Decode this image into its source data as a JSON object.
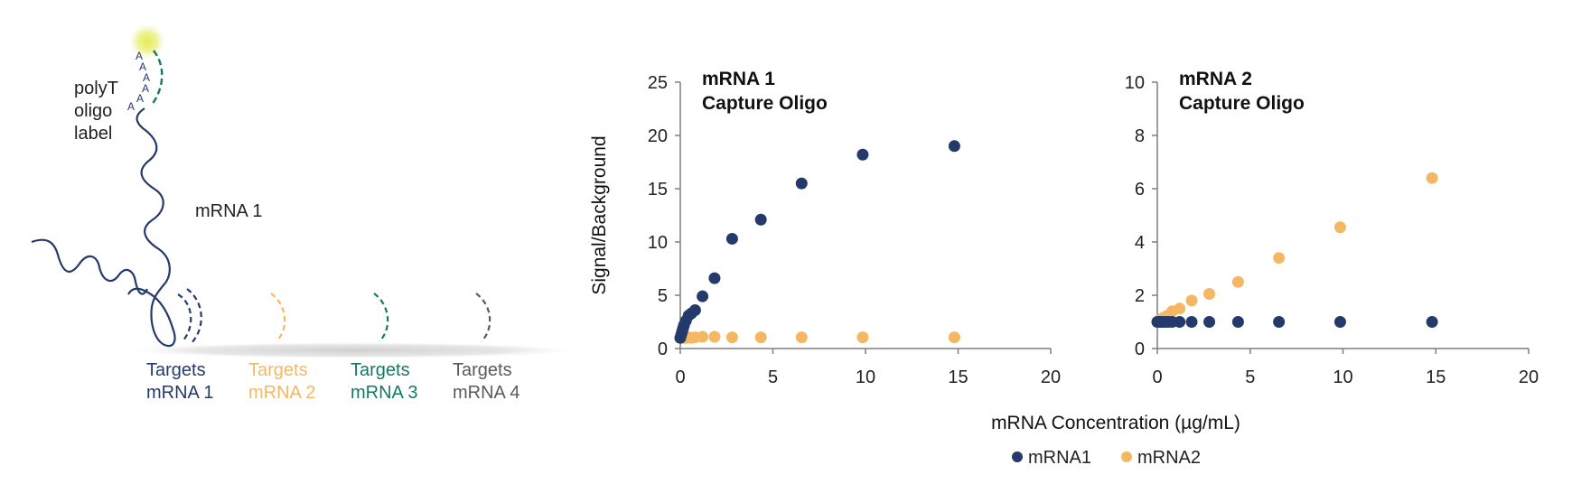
{
  "colors": {
    "mrna1": "#233a6b",
    "mrna2": "#f4b862",
    "mrna3": "#137a60",
    "mrna4": "#5a5a5a",
    "axis": "#7f7f7f",
    "label_dot": "#dfe957"
  },
  "diagram": {
    "polyT_lines": [
      "polyT",
      "oligo",
      "label"
    ],
    "polyA_letters": [
      "A",
      "A",
      "A",
      "A",
      "A",
      "A"
    ],
    "mrna_label": "mRNA 1",
    "targets": [
      {
        "line1": "Targets",
        "line2": "mRNA 1",
        "color": "#233a6b"
      },
      {
        "line1": "Targets",
        "line2": "mRNA 2",
        "color": "#f4b862"
      },
      {
        "line1": "Targets",
        "line2": "mRNA 3",
        "color": "#137a60"
      },
      {
        "line1": "Targets",
        "line2": "mRNA 4",
        "color": "#5a5a5a"
      }
    ]
  },
  "chart_data": [
    {
      "type": "scatter",
      "title": [
        "mRNA 1",
        "Capture Oligo"
      ],
      "ylabel": "Signal/Background",
      "xlim": [
        0,
        20
      ],
      "ylim": [
        0,
        25
      ],
      "xticks": [
        0,
        5,
        10,
        15,
        20
      ],
      "yticks": [
        0,
        5,
        10,
        15,
        20,
        25
      ],
      "grid": false,
      "series": [
        {
          "name": "mRNA1",
          "color": "#233a6b",
          "x": [
            0,
            0.05,
            0.1,
            0.15,
            0.2,
            0.3,
            0.45,
            0.6,
            0.8,
            1.2,
            1.85,
            2.8,
            4.35,
            6.55,
            9.85,
            14.8
          ],
          "y": [
            1.0,
            1.3,
            1.6,
            1.9,
            2.2,
            2.6,
            3.1,
            3.3,
            3.6,
            4.9,
            6.6,
            10.3,
            12.1,
            15.5,
            18.2,
            19.0
          ]
        },
        {
          "name": "mRNA2",
          "color": "#f4b862",
          "x": [
            0,
            0.1,
            0.2,
            0.3,
            0.45,
            0.6,
            0.8,
            1.2,
            1.85,
            2.8,
            4.35,
            6.55,
            9.85,
            14.8
          ],
          "y": [
            1.0,
            1.0,
            1.0,
            1.0,
            1.05,
            1.0,
            1.05,
            1.1,
            1.1,
            1.05,
            1.05,
            1.05,
            1.05,
            1.05
          ]
        }
      ]
    },
    {
      "type": "scatter",
      "title": [
        "mRNA 2",
        "Capture Oligo"
      ],
      "ylabel": "",
      "xlim": [
        0,
        20
      ],
      "ylim": [
        0,
        10
      ],
      "xticks": [
        0,
        5,
        10,
        15,
        20
      ],
      "yticks": [
        0,
        2,
        4,
        6,
        8,
        10
      ],
      "grid": false,
      "series": [
        {
          "name": "mRNA1",
          "color": "#233a6b",
          "x": [
            0,
            0.1,
            0.2,
            0.3,
            0.45,
            0.6,
            0.8,
            1.2,
            1.85,
            2.8,
            4.35,
            6.55,
            9.85,
            14.8
          ],
          "y": [
            1.0,
            1.0,
            1.0,
            1.0,
            1.0,
            1.0,
            1.0,
            1.0,
            1.0,
            1.0,
            1.0,
            1.0,
            1.0,
            1.0
          ]
        },
        {
          "name": "mRNA2",
          "color": "#f4b862",
          "x": [
            0,
            0.1,
            0.2,
            0.3,
            0.45,
            0.6,
            0.8,
            1.2,
            1.85,
            2.8,
            4.35,
            6.55,
            9.85,
            14.8
          ],
          "y": [
            1.0,
            1.05,
            1.1,
            1.15,
            1.2,
            1.25,
            1.4,
            1.5,
            1.8,
            2.05,
            2.5,
            3.4,
            4.55,
            6.4
          ]
        }
      ]
    }
  ],
  "shared": {
    "xlabel": "mRNA Concentration (µg/mL)",
    "legend": [
      {
        "name": "mRNA1",
        "color": "#233a6b"
      },
      {
        "name": "mRNA2",
        "color": "#f4b862"
      }
    ],
    "legend_position": "bottom-center"
  }
}
